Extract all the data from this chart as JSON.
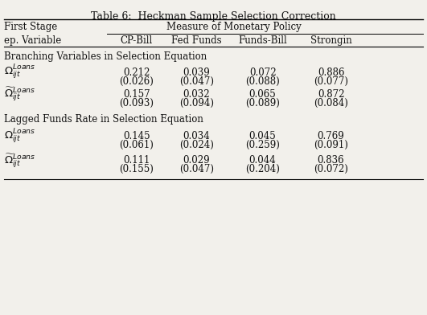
{
  "title": "Table 6:  Heckman Sample Selection Correction",
  "col_headers": [
    "CP-Bill",
    "Fed Funds",
    "Funds-Bill",
    "Strongin"
  ],
  "section1_label": "Branching Variables in Selection Equation",
  "section2_label": "Lagged Funds Rate in Selection Equation",
  "row1_coef": [
    "0.212",
    "0.039",
    "0.072",
    "0.886"
  ],
  "row1_se": [
    "(0.026)",
    "(0.047)",
    "(0.088)",
    "(0.077)"
  ],
  "row2_coef": [
    "0.157",
    "0.032",
    "0.065",
    "0.872"
  ],
  "row2_se": [
    "(0.093)",
    "(0.094)",
    "(0.089)",
    "(0.084)"
  ],
  "row3_coef": [
    "0.145",
    "0.034",
    "0.045",
    "0.769"
  ],
  "row3_se": [
    "(0.061)",
    "(0.024)",
    "(0.259)",
    "(0.091)"
  ],
  "row4_coef": [
    "0.111",
    "0.029",
    "0.044",
    "0.836"
  ],
  "row4_se": [
    "(0.155)",
    "(0.047)",
    "(0.204)",
    "(0.072)"
  ],
  "bg_color": "#f2f0eb",
  "text_color": "#111111",
  "font_size": 8.5
}
